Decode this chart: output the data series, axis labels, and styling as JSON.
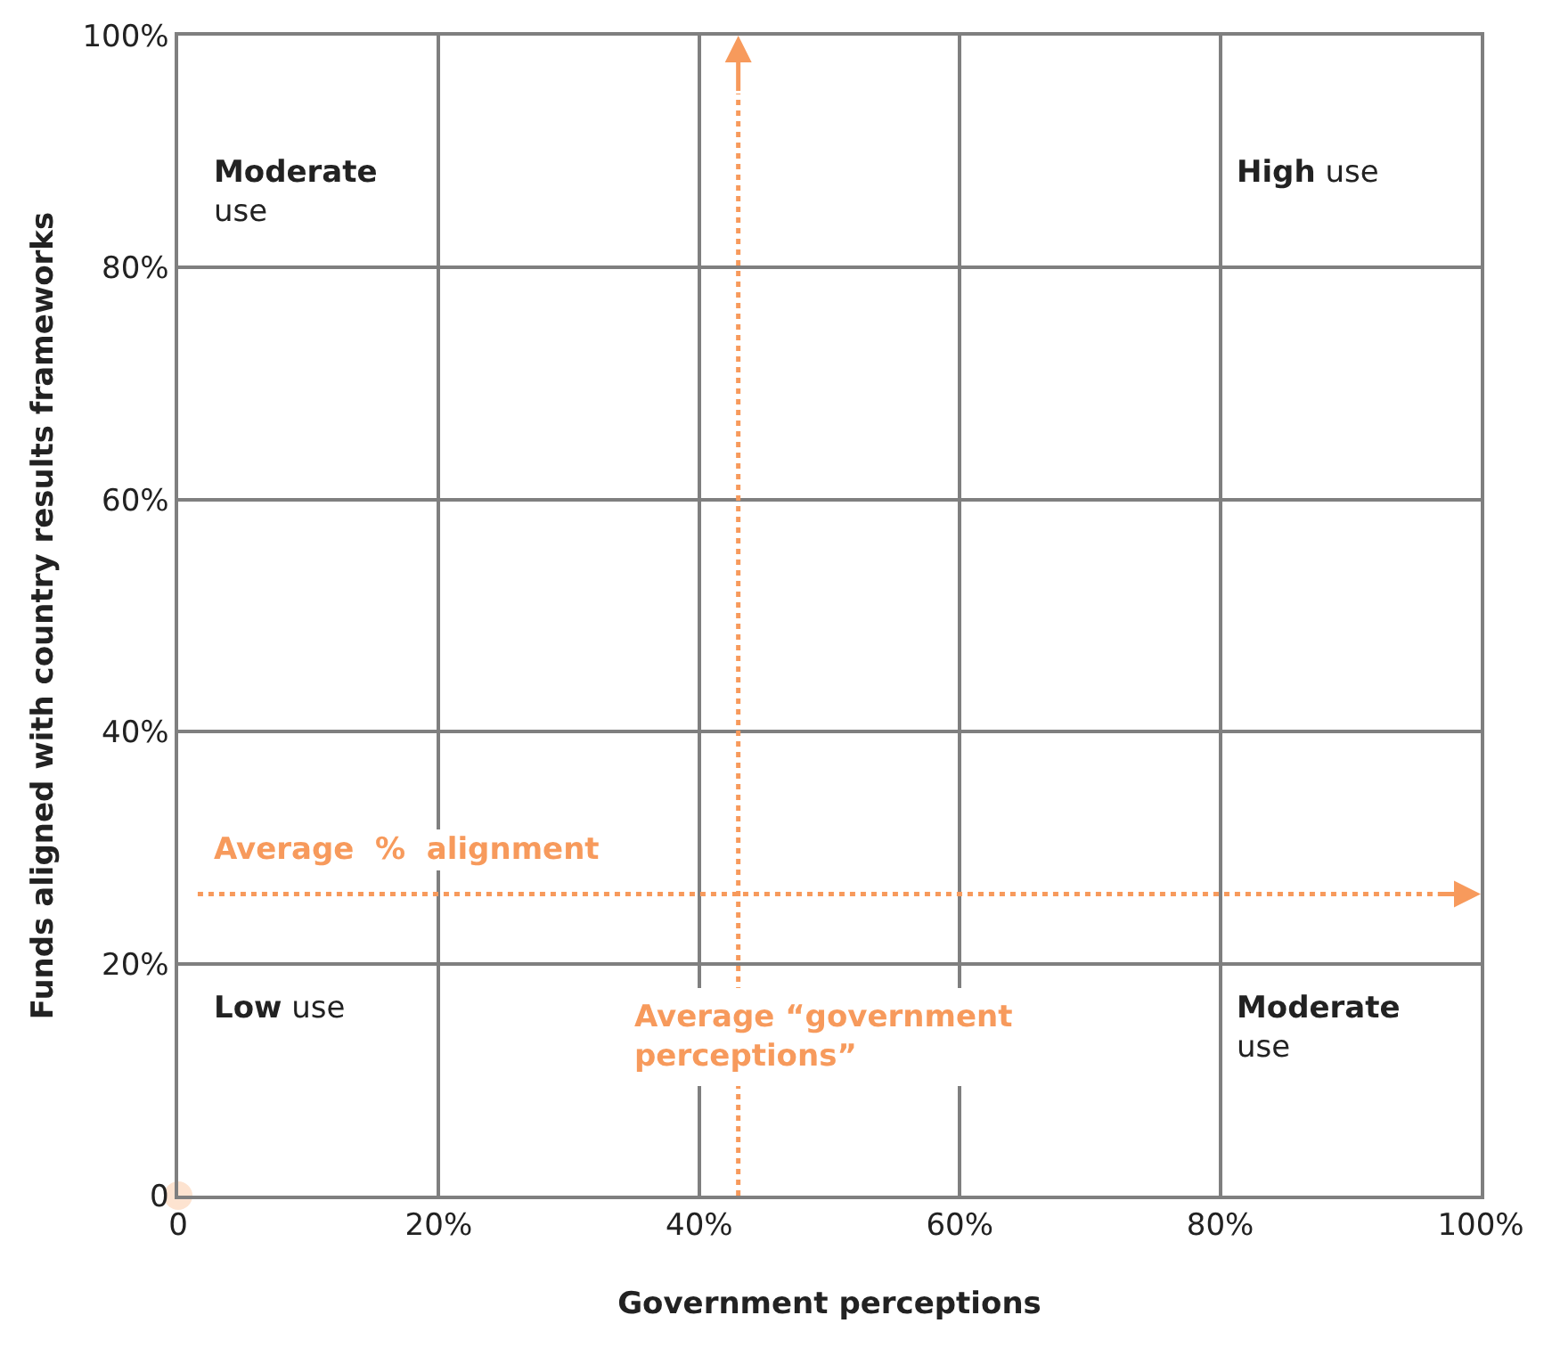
{
  "chart_data": {
    "type": "scatter",
    "xlabel": "Government perceptions",
    "ylabel": "Funds aligned with country results frameworks",
    "x": [
      0
    ],
    "values": [
      0
    ],
    "color": "#fde3d0",
    "marker": "circle",
    "xlim": [
      0,
      100
    ],
    "ylim": [
      0,
      100
    ],
    "xticks": [
      {
        "value": 0,
        "label": "0"
      },
      {
        "value": 20,
        "label": "20%"
      },
      {
        "value": 40,
        "label": "40%"
      },
      {
        "value": 60,
        "label": "60%"
      },
      {
        "value": 80,
        "label": "80%"
      },
      {
        "value": 100,
        "label": "100%"
      }
    ],
    "yticks": [
      {
        "value": 0,
        "label": "0"
      },
      {
        "value": 20,
        "label": "20%"
      },
      {
        "value": 40,
        "label": "40%"
      },
      {
        "value": 60,
        "label": "60%"
      },
      {
        "value": 80,
        "label": "80%"
      },
      {
        "value": 100,
        "label": "100%"
      }
    ],
    "grid": true,
    "ref_lines": [
      {
        "axis": "y",
        "value": 26,
        "label": "Average  %  alignment",
        "color": "#f79a5c",
        "line_style": "dotted"
      },
      {
        "axis": "x",
        "value": 43,
        "label": "Average “government\nperceptions”",
        "color": "#f79a5c",
        "line_style": "dotted"
      }
    ],
    "annotations": [
      "Moderate\nuse",
      "High use",
      "Low use",
      "Moderate\nuse"
    ]
  }
}
